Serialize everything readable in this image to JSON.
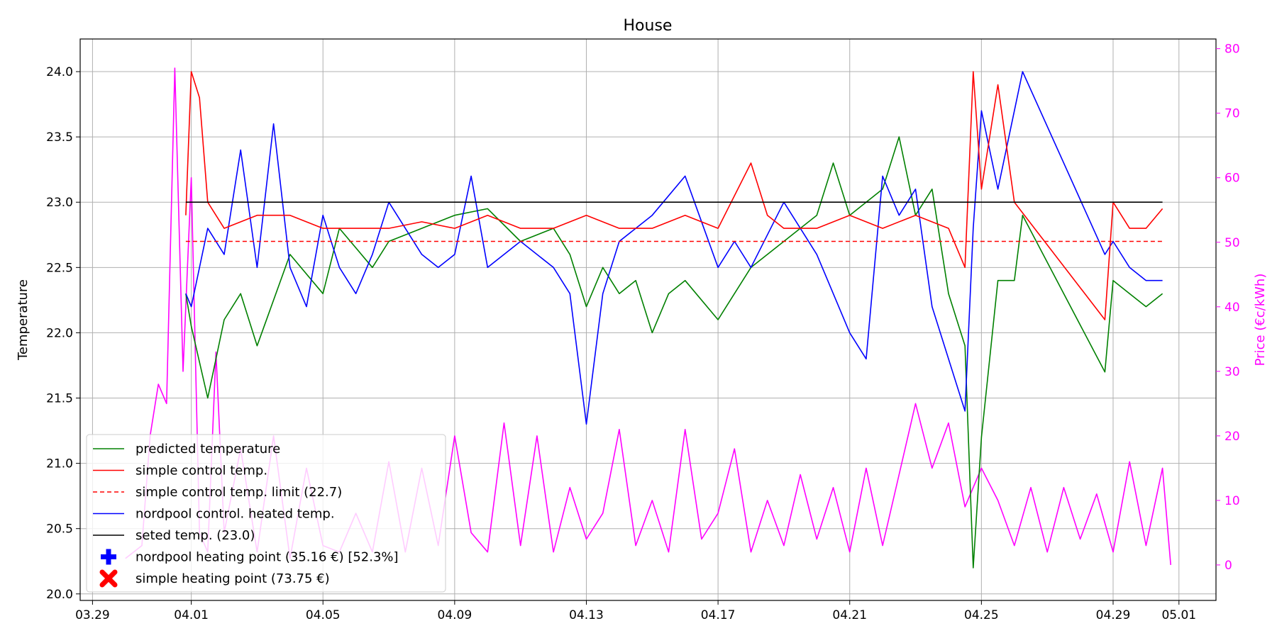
{
  "chart_data": {
    "type": "line",
    "title": "House",
    "ylabel": "Temperature",
    "y2label": "Price (€c/kWh)",
    "x_tick_labels": [
      "03.29",
      "04.01",
      "04.05",
      "04.09",
      "04.13",
      "04.17",
      "04.21",
      "04.25",
      "04.29",
      "05.01"
    ],
    "x_ticks": [
      "2024-03-29",
      "2024-04-01",
      "2024-04-05",
      "2024-04-09",
      "2024-04-13",
      "2024-04-17",
      "2024-04-21",
      "2024-04-25",
      "2024-04-29",
      "2024-05-01"
    ],
    "xlim": [
      "2024-03-28T15:00",
      "2024-05-02T03:00"
    ],
    "ylim": [
      19.95,
      24.25
    ],
    "yticks": [
      20.0,
      20.5,
      21.0,
      21.5,
      22.0,
      22.5,
      23.0,
      23.5,
      24.0
    ],
    "y2lim": [
      -5.5,
      81.5
    ],
    "y2ticks": [
      0,
      10,
      20,
      30,
      40,
      50,
      60,
      70,
      80
    ],
    "grid": true,
    "legend_position": "lower-left",
    "colors": {
      "predicted": "#008000",
      "simple": "#ff0000",
      "limit": "#ff0000",
      "nordpool": "#0000ff",
      "seted": "#000000",
      "price": "#ff00ff",
      "grid": "#b0b0b0"
    },
    "series": [
      {
        "name": "predicted temperature",
        "key": "predicted",
        "axis": "left",
        "x": [
          "2024-03-31T20:00",
          "2024-04-01T00:00",
          "2024-04-01T12:00",
          "2024-04-02T00:00",
          "2024-04-02T12:00",
          "2024-04-03T00:00",
          "2024-04-04T00:00",
          "2024-04-05T00:00",
          "2024-04-05T12:00",
          "2024-04-06T12:00",
          "2024-04-07T00:00",
          "2024-04-08T00:00",
          "2024-04-09T00:00",
          "2024-04-10T00:00",
          "2024-04-11T00:00",
          "2024-04-12T00:00",
          "2024-04-12T12:00",
          "2024-04-13T00:00",
          "2024-04-13T12:00",
          "2024-04-14T00:00",
          "2024-04-14T12:00",
          "2024-04-15T00:00",
          "2024-04-15T12:00",
          "2024-04-16T00:00",
          "2024-04-17T00:00",
          "2024-04-18T00:00",
          "2024-04-19T00:00",
          "2024-04-20T00:00",
          "2024-04-20T12:00",
          "2024-04-21T00:00",
          "2024-04-22T00:00",
          "2024-04-22T12:00",
          "2024-04-23T00:00",
          "2024-04-23T12:00",
          "2024-04-24T00:00",
          "2024-04-24T12:00",
          "2024-04-24T18:00",
          "2024-04-25T00:00",
          "2024-04-25T12:00",
          "2024-04-26T00:00",
          "2024-04-26T06:00",
          "2024-04-28T18:00",
          "2024-04-29T00:00",
          "2024-04-29T12:00",
          "2024-04-30T00:00",
          "2024-04-30T12:00"
        ],
        "y": [
          22.3,
          22.05,
          21.5,
          22.1,
          22.3,
          21.9,
          22.6,
          22.3,
          22.8,
          22.5,
          22.7,
          22.8,
          22.9,
          22.95,
          22.7,
          22.8,
          22.6,
          22.2,
          22.5,
          22.3,
          22.4,
          22.0,
          22.3,
          22.4,
          22.1,
          22.5,
          22.7,
          22.9,
          23.3,
          22.9,
          23.1,
          23.5,
          22.9,
          23.1,
          22.3,
          21.9,
          20.2,
          21.2,
          22.4,
          22.4,
          22.9,
          21.7,
          22.4,
          22.3,
          22.2,
          22.3
        ]
      },
      {
        "name": "simple control temp.",
        "key": "simple",
        "axis": "left",
        "x": [
          "2024-03-31T20:00",
          "2024-04-01T00:00",
          "2024-04-01T06:00",
          "2024-04-01T12:00",
          "2024-04-02T00:00",
          "2024-04-03T00:00",
          "2024-04-04T00:00",
          "2024-04-05T00:00",
          "2024-04-06T00:00",
          "2024-04-07T00:00",
          "2024-04-08T00:00",
          "2024-04-09T00:00",
          "2024-04-10T00:00",
          "2024-04-11T00:00",
          "2024-04-12T00:00",
          "2024-04-13T00:00",
          "2024-04-14T00:00",
          "2024-04-15T00:00",
          "2024-04-16T00:00",
          "2024-04-17T00:00",
          "2024-04-18T00:00",
          "2024-04-18T12:00",
          "2024-04-19T00:00",
          "2024-04-20T00:00",
          "2024-04-21T00:00",
          "2024-04-22T00:00",
          "2024-04-23T00:00",
          "2024-04-24T00:00",
          "2024-04-24T12:00",
          "2024-04-24T18:00",
          "2024-04-25T00:00",
          "2024-04-25T12:00",
          "2024-04-26T00:00",
          "2024-04-28T18:00",
          "2024-04-29T00:00",
          "2024-04-29T12:00",
          "2024-04-30T00:00",
          "2024-04-30T12:00"
        ],
        "y": [
          22.9,
          24.0,
          23.8,
          23.0,
          22.8,
          22.9,
          22.9,
          22.8,
          22.8,
          22.8,
          22.85,
          22.8,
          22.9,
          22.8,
          22.8,
          22.9,
          22.8,
          22.8,
          22.9,
          22.8,
          23.3,
          22.9,
          22.8,
          22.8,
          22.9,
          22.8,
          22.9,
          22.8,
          22.5,
          24.0,
          23.1,
          23.9,
          23.0,
          22.1,
          23.0,
          22.8,
          22.8,
          22.95
        ]
      },
      {
        "name": "simple control temp. limit (22.7)",
        "key": "limit",
        "axis": "left",
        "dashed": true,
        "x": [
          "2024-03-31T20:00",
          "2024-04-30T12:00"
        ],
        "y": [
          22.7,
          22.7
        ]
      },
      {
        "name": "nordpool control. heated temp.",
        "key": "nordpool",
        "axis": "left",
        "x": [
          "2024-03-31T20:00",
          "2024-04-01T00:00",
          "2024-04-01T12:00",
          "2024-04-02T00:00",
          "2024-04-02T12:00",
          "2024-04-03T00:00",
          "2024-04-03T12:00",
          "2024-04-04T00:00",
          "2024-04-04T12:00",
          "2024-04-05T00:00",
          "2024-04-05T12:00",
          "2024-04-06T00:00",
          "2024-04-06T12:00",
          "2024-04-07T00:00",
          "2024-04-08T00:00",
          "2024-04-08T12:00",
          "2024-04-09T00:00",
          "2024-04-09T12:00",
          "2024-04-10T00:00",
          "2024-04-11T00:00",
          "2024-04-12T00:00",
          "2024-04-12T12:00",
          "2024-04-13T00:00",
          "2024-04-13T12:00",
          "2024-04-14T00:00",
          "2024-04-15T00:00",
          "2024-04-16T00:00",
          "2024-04-17T00:00",
          "2024-04-17T12:00",
          "2024-04-18T00:00",
          "2024-04-19T00:00",
          "2024-04-20T00:00",
          "2024-04-21T00:00",
          "2024-04-21T12:00",
          "2024-04-22T00:00",
          "2024-04-22T12:00",
          "2024-04-23T00:00",
          "2024-04-23T12:00",
          "2024-04-24T00:00",
          "2024-04-24T12:00",
          "2024-04-24T18:00",
          "2024-04-25T00:00",
          "2024-04-25T12:00",
          "2024-04-26T00:00",
          "2024-04-26T06:00",
          "2024-04-28T18:00",
          "2024-04-29T00:00",
          "2024-04-29T12:00",
          "2024-04-30T00:00",
          "2024-04-30T12:00"
        ],
        "y": [
          22.3,
          22.2,
          22.8,
          22.6,
          23.4,
          22.5,
          23.6,
          22.5,
          22.2,
          22.9,
          22.5,
          22.3,
          22.6,
          23.0,
          22.6,
          22.5,
          22.6,
          23.2,
          22.5,
          22.7,
          22.5,
          22.3,
          21.3,
          22.3,
          22.7,
          22.9,
          23.2,
          22.5,
          22.7,
          22.5,
          23.0,
          22.6,
          22.0,
          21.8,
          23.2,
          22.9,
          23.1,
          22.2,
          21.8,
          21.4,
          22.8,
          23.7,
          23.1,
          23.7,
          24.0,
          22.6,
          22.7,
          22.5,
          22.4,
          22.4
        ]
      },
      {
        "name": "seted temp. (23.0)",
        "key": "seted",
        "axis": "left",
        "x": [
          "2024-03-31T20:00",
          "2024-04-30T12:00"
        ],
        "y": [
          23.0,
          23.0
        ]
      },
      {
        "name": "price",
        "key": "price",
        "axis": "right",
        "x": [
          "2024-03-30T00:00",
          "2024-03-30T06:00",
          "2024-03-30T12:00",
          "2024-03-30T18:00",
          "2024-03-31T00:00",
          "2024-03-31T06:00",
          "2024-03-31T12:00",
          "2024-03-31T18:00",
          "2024-04-01T00:00",
          "2024-04-01T06:00",
          "2024-04-01T12:00",
          "2024-04-01T18:00",
          "2024-04-02T00:00",
          "2024-04-02T12:00",
          "2024-04-03T00:00",
          "2024-04-03T12:00",
          "2024-04-04T00:00",
          "2024-04-04T12:00",
          "2024-04-05T00:00",
          "2024-04-05T12:00",
          "2024-04-06T00:00",
          "2024-04-06T12:00",
          "2024-04-07T00:00",
          "2024-04-07T12:00",
          "2024-04-08T00:00",
          "2024-04-08T12:00",
          "2024-04-09T00:00",
          "2024-04-09T12:00",
          "2024-04-10T00:00",
          "2024-04-10T12:00",
          "2024-04-11T00:00",
          "2024-04-11T12:00",
          "2024-04-12T00:00",
          "2024-04-12T12:00",
          "2024-04-13T00:00",
          "2024-04-13T12:00",
          "2024-04-14T00:00",
          "2024-04-14T12:00",
          "2024-04-15T00:00",
          "2024-04-15T12:00",
          "2024-04-16T00:00",
          "2024-04-16T12:00",
          "2024-04-17T00:00",
          "2024-04-17T12:00",
          "2024-04-18T00:00",
          "2024-04-18T12:00",
          "2024-04-19T00:00",
          "2024-04-19T12:00",
          "2024-04-20T00:00",
          "2024-04-20T12:00",
          "2024-04-21T00:00",
          "2024-04-21T12:00",
          "2024-04-22T00:00",
          "2024-04-22T12:00",
          "2024-04-23T00:00",
          "2024-04-23T12:00",
          "2024-04-24T00:00",
          "2024-04-24T12:00",
          "2024-04-25T00:00",
          "2024-04-25T12:00",
          "2024-04-26T00:00",
          "2024-04-26T12:00",
          "2024-04-27T00:00",
          "2024-04-27T12:00",
          "2024-04-28T00:00",
          "2024-04-28T12:00",
          "2024-04-29T00:00",
          "2024-04-29T12:00",
          "2024-04-30T00:00",
          "2024-04-30T12:00",
          "2024-04-30T18:00"
        ],
        "y": [
          1,
          2,
          3,
          20,
          28,
          25,
          77,
          30,
          60,
          5,
          2,
          33,
          5,
          18,
          2,
          20,
          1,
          15,
          3,
          2,
          8,
          2,
          16,
          2,
          15,
          3,
          20,
          5,
          2,
          22,
          3,
          20,
          2,
          12,
          4,
          8,
          21,
          3,
          10,
          2,
          21,
          4,
          8,
          18,
          2,
          10,
          3,
          14,
          4,
          12,
          2,
          15,
          3,
          14,
          25,
          15,
          22,
          9,
          15,
          10,
          3,
          12,
          2,
          12,
          4,
          11,
          2,
          16,
          3,
          15,
          0
        ]
      }
    ],
    "markers": [
      {
        "name": "nordpool heating point (35.16 €) [52.3%]",
        "key": "nordpool",
        "shape": "plus"
      },
      {
        "name": "simple heating point (73.75 €)",
        "key": "simple",
        "shape": "x"
      }
    ]
  }
}
